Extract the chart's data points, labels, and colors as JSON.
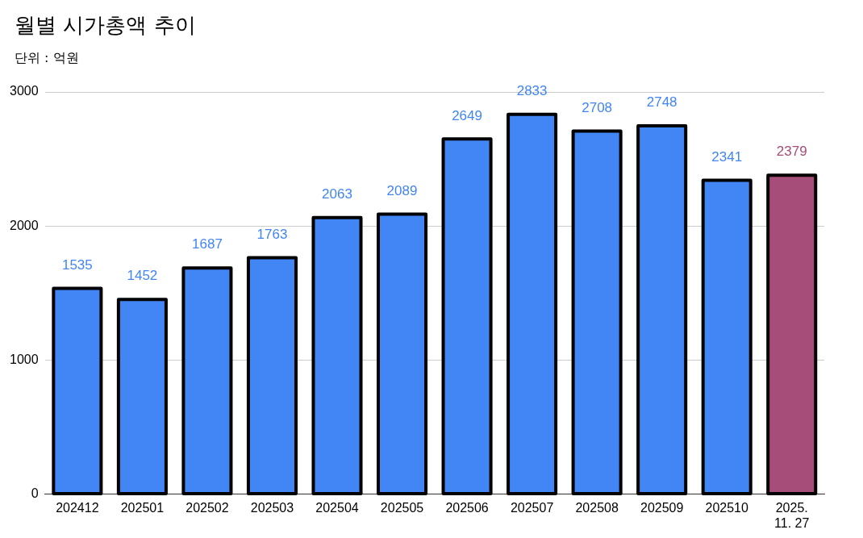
{
  "chart_data": {
    "type": "bar",
    "title": "월별 시가총액 추이",
    "subtitle": "단위 : 억원",
    "categories": [
      "202412",
      "202501",
      "202502",
      "202503",
      "202504",
      "202505",
      "202506",
      "202507",
      "202508",
      "202509",
      "202510",
      "2025.\n11. 27"
    ],
    "values": [
      1535,
      1452,
      1687,
      1763,
      2063,
      2089,
      2649,
      2833,
      2708,
      2748,
      2341,
      2379
    ],
    "colors": [
      "#4285f4",
      "#4285f4",
      "#4285f4",
      "#4285f4",
      "#4285f4",
      "#4285f4",
      "#4285f4",
      "#4285f4",
      "#4285f4",
      "#4285f4",
      "#4285f4",
      "#a64d79"
    ],
    "ylim": [
      0,
      3000
    ],
    "yticks": [
      0,
      1000,
      2000,
      3000
    ],
    "grid": "y",
    "data_labels": true,
    "legend": false
  }
}
